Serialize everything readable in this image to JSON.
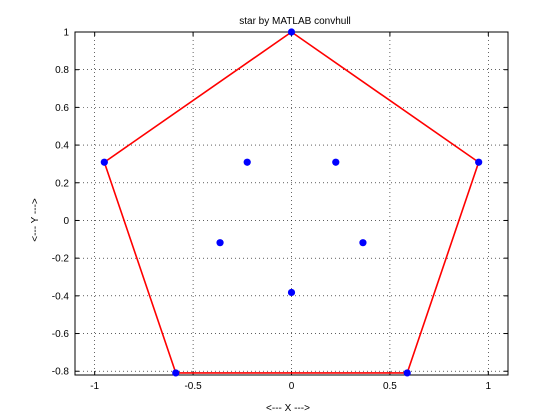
{
  "chart_data": {
    "type": "scatter",
    "title": "star by MATLAB convhull",
    "xlabel": "<--- X --->",
    "ylabel": "<--- Y --->",
    "xlim": [
      -1.1,
      1.1
    ],
    "ylim": [
      -0.82,
      1.0
    ],
    "xticks": [
      -1,
      -0.5,
      0,
      0.5,
      1
    ],
    "xtick_labels": [
      "-1",
      "-0.5",
      "0",
      "0.5",
      "1"
    ],
    "yticks": [
      1,
      0.8,
      0.6,
      0.4,
      0.2,
      0,
      -0.2,
      -0.4,
      -0.6,
      -0.8
    ],
    "ytick_labels": [
      "1",
      "0.8",
      "0.6",
      "0.4",
      "0.2",
      "0",
      "-0.2",
      "-0.4",
      "-0.6",
      "-0.8"
    ],
    "grid": true,
    "series": [
      {
        "marker": "dot",
        "color": "#0000ff",
        "points": [
          {
            "x": 0,
            "y": 1
          },
          {
            "x": 0.951,
            "y": 0.309
          },
          {
            "x": 0.588,
            "y": -0.809
          },
          {
            "x": -0.588,
            "y": -0.809
          },
          {
            "x": -0.951,
            "y": 0.309
          },
          {
            "x": 0.225,
            "y": 0.309
          },
          {
            "x": 0.363,
            "y": -0.118
          },
          {
            "x": 0,
            "y": -0.382
          },
          {
            "x": -0.363,
            "y": -0.118
          },
          {
            "x": -0.225,
            "y": 0.309
          }
        ]
      },
      {
        "line": "hull",
        "color": "#ff0000",
        "points": [
          {
            "x": 0,
            "y": 1
          },
          {
            "x": 0.951,
            "y": 0.309
          },
          {
            "x": 0.588,
            "y": -0.809
          },
          {
            "x": -0.588,
            "y": -0.809
          },
          {
            "x": -0.951,
            "y": 0.309
          },
          {
            "x": 0,
            "y": 1
          }
        ]
      }
    ]
  }
}
